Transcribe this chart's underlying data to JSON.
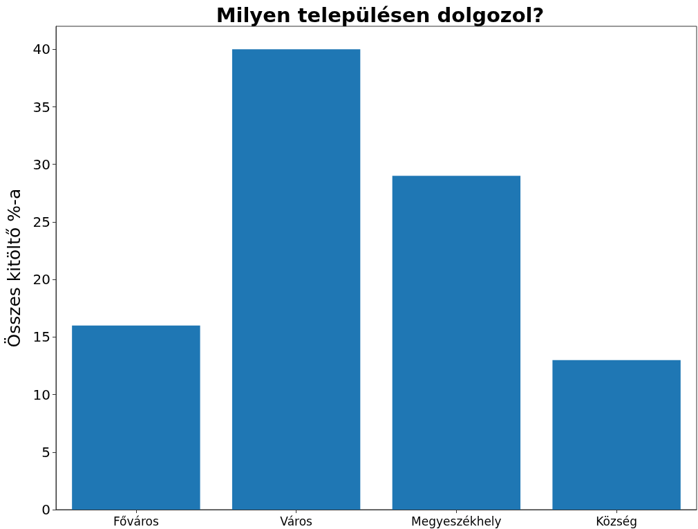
{
  "chart_data": {
    "type": "bar",
    "title": "Milyen településen dolgozol?",
    "ylabel": "Összes kitöltő %-a",
    "categories": [
      "Főváros",
      "Város",
      "Megyeszékhely",
      "Község"
    ],
    "values": [
      16,
      40,
      29,
      13
    ],
    "color": "#1f77b4",
    "ylim": [
      0,
      42
    ],
    "yticks": [
      0,
      5,
      10,
      15,
      20,
      25,
      30,
      35,
      40
    ],
    "grid": false
  }
}
